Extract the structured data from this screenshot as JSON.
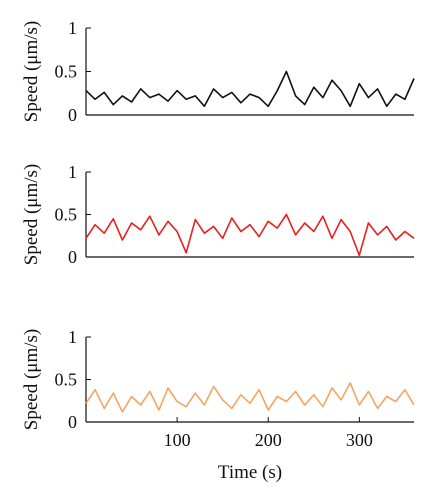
{
  "chart_data": [
    {
      "type": "line",
      "ylabel": "Speed (μm/s)",
      "xlim": [
        0,
        360
      ],
      "ylim": [
        0,
        1
      ],
      "yticks": [
        0,
        0.5,
        1
      ],
      "ytick_labels": [
        "0",
        "0.5",
        "1"
      ],
      "grid": false,
      "series": [
        {
          "color": "#111111",
          "x": [
            0,
            10,
            20,
            30,
            40,
            50,
            60,
            70,
            80,
            90,
            100,
            110,
            120,
            130,
            140,
            150,
            160,
            170,
            180,
            190,
            200,
            210,
            220,
            230,
            240,
            250,
            260,
            270,
            280,
            290,
            300,
            310,
            320,
            330,
            340,
            350,
            360
          ],
          "y": [
            0.28,
            0.18,
            0.26,
            0.12,
            0.22,
            0.15,
            0.3,
            0.2,
            0.24,
            0.16,
            0.28,
            0.18,
            0.22,
            0.1,
            0.3,
            0.2,
            0.26,
            0.14,
            0.24,
            0.2,
            0.1,
            0.28,
            0.5,
            0.22,
            0.12,
            0.32,
            0.2,
            0.4,
            0.28,
            0.1,
            0.36,
            0.2,
            0.3,
            0.1,
            0.24,
            0.18,
            0.42
          ]
        }
      ]
    },
    {
      "type": "line",
      "ylabel": "Speed (μm/s)",
      "xlim": [
        0,
        360
      ],
      "ylim": [
        0,
        1
      ],
      "yticks": [
        0,
        0.5,
        1
      ],
      "ytick_labels": [
        "0",
        "0.5",
        "1"
      ],
      "grid": false,
      "series": [
        {
          "color": "#e8201e",
          "x": [
            0,
            10,
            20,
            30,
            40,
            50,
            60,
            70,
            80,
            90,
            100,
            110,
            120,
            130,
            140,
            150,
            160,
            170,
            180,
            190,
            200,
            210,
            220,
            230,
            240,
            250,
            260,
            270,
            280,
            290,
            300,
            310,
            320,
            330,
            340,
            350,
            360
          ],
          "y": [
            0.22,
            0.38,
            0.28,
            0.45,
            0.2,
            0.4,
            0.32,
            0.48,
            0.26,
            0.42,
            0.3,
            0.05,
            0.44,
            0.28,
            0.36,
            0.22,
            0.46,
            0.3,
            0.38,
            0.24,
            0.42,
            0.34,
            0.5,
            0.26,
            0.4,
            0.3,
            0.48,
            0.22,
            0.44,
            0.3,
            0.02,
            0.4,
            0.26,
            0.36,
            0.2,
            0.3,
            0.22
          ]
        }
      ]
    },
    {
      "type": "line",
      "xlabel": "Time (s)",
      "ylabel": "Speed (μm/s)",
      "xlim": [
        0,
        360
      ],
      "ylim": [
        0,
        1
      ],
      "xticks": [
        100,
        200,
        300
      ],
      "xtick_labels": [
        "100",
        "200",
        "300"
      ],
      "yticks": [
        0,
        0.5,
        1
      ],
      "ytick_labels": [
        "0",
        "0.5",
        "1"
      ],
      "grid": false,
      "series": [
        {
          "color": "#f4a563",
          "x": [
            0,
            10,
            20,
            30,
            40,
            50,
            60,
            70,
            80,
            90,
            100,
            110,
            120,
            130,
            140,
            150,
            160,
            170,
            180,
            190,
            200,
            210,
            220,
            230,
            240,
            250,
            260,
            270,
            280,
            290,
            300,
            310,
            320,
            330,
            340,
            350,
            360
          ],
          "y": [
            0.22,
            0.38,
            0.16,
            0.34,
            0.12,
            0.3,
            0.2,
            0.36,
            0.14,
            0.4,
            0.24,
            0.18,
            0.34,
            0.2,
            0.42,
            0.26,
            0.16,
            0.32,
            0.22,
            0.38,
            0.14,
            0.3,
            0.24,
            0.36,
            0.2,
            0.32,
            0.18,
            0.4,
            0.26,
            0.46,
            0.2,
            0.36,
            0.16,
            0.3,
            0.24,
            0.38,
            0.2
          ]
        }
      ]
    }
  ]
}
